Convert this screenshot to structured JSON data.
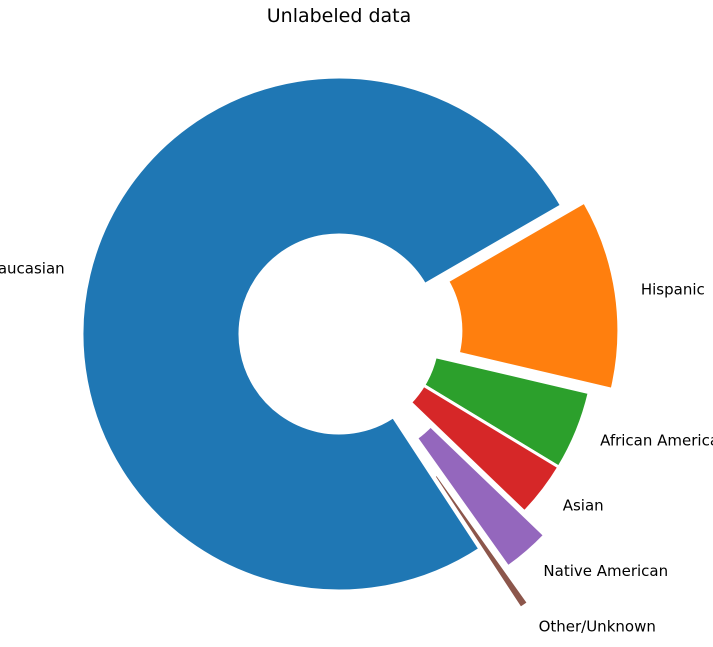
{
  "chart_data": {
    "type": "pie",
    "title": "Unlabeled data",
    "donut": true,
    "start_angle_deg": 30,
    "direction": "clockwise",
    "slices": [
      {
        "label": "Hispanic",
        "value": 12.0,
        "color": "#ff7f0e",
        "explode": 0.09
      },
      {
        "label": "African American",
        "value": 5.0,
        "color": "#2ca02c",
        "explode": 0.0
      },
      {
        "label": "Asian",
        "value": 3.5,
        "color": "#d62728",
        "explode": 0.0
      },
      {
        "label": "Native American",
        "value": 3.0,
        "color": "#9467bd",
        "explode": 0.12
      },
      {
        "label": "Other/Unknown",
        "value": 0.6,
        "color": "#8c564b",
        "explode": 0.28
      },
      {
        "label": "Caucasian",
        "value": 75.9,
        "color": "#1f77b4",
        "explode": 0.0
      }
    ]
  }
}
